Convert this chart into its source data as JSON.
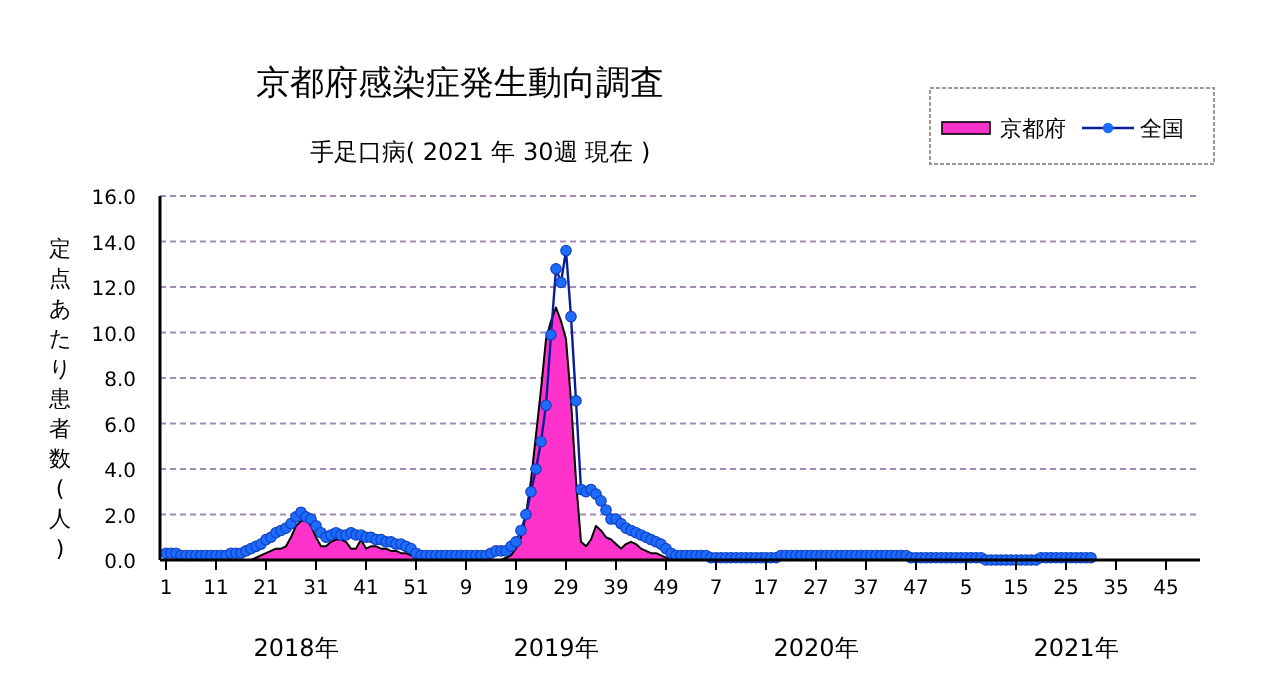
{
  "chart_data": {
    "type": "area",
    "title": "京都府感染症発生動向調査",
    "subtitle": "手足口病( 2021 年 30週 現在 )",
    "ylabel": "定点あたり患者数(人)",
    "annotations": [
      "2018年",
      "2019年",
      "2020年",
      "2021年"
    ],
    "categories": [
      "1",
      null,
      null,
      null,
      null,
      null,
      null,
      null,
      null,
      null,
      "11",
      null,
      null,
      null,
      null,
      null,
      null,
      null,
      null,
      null,
      "21",
      null,
      null,
      null,
      null,
      null,
      null,
      null,
      null,
      null,
      "31",
      null,
      null,
      null,
      null,
      null,
      null,
      null,
      null,
      null,
      "41",
      null,
      null,
      null,
      null,
      null,
      null,
      null,
      null,
      null,
      "51",
      null,
      null,
      null,
      null,
      null,
      null,
      null,
      null,
      null,
      "9",
      null,
      null,
      null,
      null,
      null,
      null,
      null,
      null,
      null,
      "19",
      null,
      null,
      null,
      null,
      null,
      null,
      null,
      null,
      null,
      "29",
      null,
      null,
      null,
      null,
      null,
      null,
      null,
      null,
      null,
      "39",
      null,
      null,
      null,
      null,
      null,
      null,
      null,
      null,
      null,
      "49",
      null,
      null,
      null,
      null,
      null,
      null,
      null,
      null,
      null,
      "7",
      null,
      null,
      null,
      null,
      null,
      null,
      null,
      null,
      null,
      "17",
      null,
      null,
      null,
      null,
      null,
      null,
      null,
      null,
      null,
      "27",
      null,
      null,
      null,
      null,
      null,
      null,
      null,
      null,
      null,
      "37",
      null,
      null,
      null,
      null,
      null,
      null,
      null,
      null,
      null,
      "47",
      null,
      null,
      null,
      null,
      null,
      null,
      null,
      null,
      null,
      "5",
      null,
      null,
      null,
      null,
      null,
      null,
      null,
      null,
      null,
      "15",
      null,
      null,
      null,
      null,
      null,
      null,
      null,
      null,
      null,
      "25",
      null,
      null,
      null,
      null,
      null,
      null,
      null,
      null,
      null,
      "35",
      null,
      null,
      null,
      null,
      null,
      null,
      null,
      null,
      null,
      "45",
      null,
      null,
      null,
      null,
      null,
      null,
      null
    ],
    "series": [
      {
        "name": "京都府",
        "color": "#ff33cc",
        "values": [
          0,
          0,
          0,
          0,
          0,
          0,
          0,
          0,
          0,
          0,
          0,
          0,
          0,
          0,
          0,
          0,
          0,
          0,
          0.1,
          0.2,
          0.3,
          0.4,
          0.5,
          0.5,
          0.6,
          1.0,
          1.5,
          1.7,
          1.8,
          1.5,
          1.0,
          0.6,
          0.6,
          0.8,
          0.9,
          0.9,
          0.8,
          0.5,
          0.5,
          0.9,
          0.5,
          0.6,
          0.6,
          0.5,
          0.5,
          0.4,
          0.4,
          0.3,
          0.3,
          0.2,
          0.1,
          0,
          0,
          0,
          0,
          0,
          0,
          0,
          0,
          0,
          0,
          0,
          0,
          0,
          0,
          0,
          0,
          0,
          0.1,
          0.2,
          0.5,
          1.0,
          2.0,
          3.5,
          5.5,
          7.5,
          9.7,
          10.5,
          11.1,
          10.5,
          9.7,
          7.0,
          3.5,
          0.8,
          0.6,
          0.9,
          1.5,
          1.3,
          1.0,
          0.9,
          0.7,
          0.5,
          0.7,
          0.8,
          0.7,
          0.5,
          0.4,
          0.3,
          0.3,
          0.2,
          0.1,
          0.1,
          0,
          0,
          0,
          0,
          0,
          0,
          0,
          0,
          0,
          0,
          0,
          0,
          0,
          0,
          0,
          0,
          0,
          0,
          0,
          0,
          0,
          0,
          0,
          0,
          0,
          0,
          0,
          0,
          0,
          0,
          0,
          0,
          0,
          0,
          0,
          0,
          0,
          0,
          0,
          0,
          0,
          0,
          0,
          0,
          0,
          0,
          0,
          0,
          0,
          0,
          0,
          0,
          0,
          0,
          0,
          0,
          0,
          0,
          0,
          0,
          0,
          0,
          0,
          0,
          0,
          0,
          0,
          0,
          0,
          0,
          0,
          0,
          0,
          0,
          0,
          0,
          0,
          0,
          0,
          0,
          0,
          0,
          0,
          0,
          null,
          null,
          null,
          null,
          null,
          null,
          null,
          null,
          null,
          null,
          null,
          null,
          null,
          null,
          null,
          null,
          null,
          null,
          null,
          null,
          null,
          null
        ]
      },
      {
        "name": "全国",
        "type": "line",
        "color": "#1e6cff",
        "marker": "circle",
        "values": [
          0.3,
          0.3,
          0.3,
          0.2,
          0.2,
          0.2,
          0.2,
          0.2,
          0.2,
          0.2,
          0.2,
          0.2,
          0.2,
          0.3,
          0.3,
          0.3,
          0.4,
          0.5,
          0.6,
          0.7,
          0.9,
          1.0,
          1.2,
          1.3,
          1.4,
          1.6,
          1.9,
          2.1,
          1.9,
          1.8,
          1.5,
          1.2,
          1.0,
          1.1,
          1.2,
          1.1,
          1.1,
          1.2,
          1.1,
          1.1,
          1.0,
          1.0,
          0.9,
          0.9,
          0.8,
          0.8,
          0.7,
          0.7,
          0.6,
          0.5,
          0.3,
          0.2,
          0.2,
          0.2,
          0.2,
          0.2,
          0.2,
          0.2,
          0.2,
          0.2,
          0.2,
          0.2,
          0.2,
          0.2,
          0.2,
          0.3,
          0.4,
          0.4,
          0.4,
          0.6,
          0.8,
          1.3,
          2.0,
          3.0,
          4.0,
          5.2,
          6.8,
          9.9,
          12.8,
          12.2,
          13.6,
          10.7,
          7.0,
          3.1,
          3.0,
          3.1,
          2.9,
          2.6,
          2.2,
          1.8,
          1.8,
          1.6,
          1.4,
          1.3,
          1.2,
          1.1,
          1.0,
          0.9,
          0.8,
          0.7,
          0.5,
          0.3,
          0.2,
          0.2,
          0.2,
          0.2,
          0.2,
          0.2,
          0.2,
          0.1,
          0.1,
          0.1,
          0.1,
          0.1,
          0.1,
          0.1,
          0.1,
          0.1,
          0.1,
          0.1,
          0.1,
          0.1,
          0.1,
          0.2,
          0.2,
          0.2,
          0.2,
          0.2,
          0.2,
          0.2,
          0.2,
          0.2,
          0.2,
          0.2,
          0.2,
          0.2,
          0.2,
          0.2,
          0.2,
          0.2,
          0.2,
          0.2,
          0.2,
          0.2,
          0.2,
          0.2,
          0.2,
          0.2,
          0.2,
          0.1,
          0.1,
          0.1,
          0.1,
          0.1,
          0.1,
          0.1,
          0.1,
          0.1,
          0.1,
          0.1,
          0.1,
          0.1,
          0.1,
          0.1,
          0.0,
          0.0,
          0.0,
          0.0,
          0.0,
          0.0,
          0.0,
          0.0,
          0.0,
          0.0,
          0.0,
          0.1,
          0.1,
          0.1,
          0.1,
          0.1,
          0.1,
          0.1,
          0.1,
          0.1,
          0.1,
          0.1,
          null,
          null,
          null,
          null,
          null,
          null,
          null,
          null,
          null,
          null,
          null,
          null,
          null,
          null,
          null,
          null,
          null,
          null,
          null,
          null,
          null,
          null
        ]
      }
    ],
    "ylim": [
      0,
      16
    ],
    "yticks": [
      {
        "value": 0,
        "label": "0.0"
      },
      {
        "value": 2,
        "label": "2.0"
      },
      {
        "value": 4,
        "label": "4.0"
      },
      {
        "value": 6,
        "label": "6.0"
      },
      {
        "value": 8,
        "label": "8.0"
      },
      {
        "value": 10,
        "label": "10.0"
      },
      {
        "value": 12,
        "label": "12.0"
      },
      {
        "value": 14,
        "label": "14.0"
      },
      {
        "value": 16,
        "label": "16.0"
      }
    ],
    "grid": "y",
    "legend": "top right"
  }
}
